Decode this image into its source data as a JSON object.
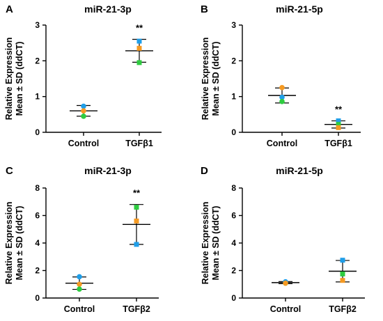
{
  "colors": {
    "blue": "#1f9ee8",
    "orange": "#f59a23",
    "green": "#2ecc40",
    "axis": "#000000"
  },
  "chart_data": [
    {
      "panel": "A",
      "type": "scatter",
      "title": "miR-21-3p",
      "ylabel_line1": "Relative Expression",
      "ylabel_line2": "Mean ± SD (ddCT)",
      "categories": [
        "Control",
        "TGFβ1"
      ],
      "ylim": [
        0,
        3
      ],
      "yticks": [
        "0",
        "1",
        "2",
        "3"
      ],
      "groups": [
        {
          "category": "Control",
          "mean": 0.6,
          "sd": 0.15,
          "points": [
            {
              "y": 0.73,
              "color": "blue",
              "shape": "circle"
            },
            {
              "y": 0.6,
              "color": "orange",
              "shape": "circle"
            },
            {
              "y": 0.45,
              "color": "green",
              "shape": "circle"
            }
          ],
          "sig": ""
        },
        {
          "category": "TGFβ1",
          "mean": 2.28,
          "sd": 0.32,
          "points": [
            {
              "y": 2.55,
              "color": "blue",
              "shape": "square"
            },
            {
              "y": 2.35,
              "color": "orange",
              "shape": "square"
            },
            {
              "y": 1.95,
              "color": "green",
              "shape": "square"
            }
          ],
          "sig": "**"
        }
      ]
    },
    {
      "panel": "B",
      "type": "scatter",
      "title": "miR-21-5p",
      "ylabel_line1": "Relative Expression",
      "ylabel_line2": "Mean ± SD (ddCT)",
      "categories": [
        "Control",
        "TGFβ1"
      ],
      "ylim": [
        0,
        3
      ],
      "yticks": [
        "0",
        "1",
        "2",
        "3"
      ],
      "groups": [
        {
          "category": "Control",
          "mean": 1.03,
          "sd": 0.21,
          "points": [
            {
              "y": 1.25,
              "color": "orange",
              "shape": "circle"
            },
            {
              "y": 0.98,
              "color": "blue",
              "shape": "circle"
            },
            {
              "y": 0.86,
              "color": "green",
              "shape": "circle"
            }
          ],
          "sig": ""
        },
        {
          "category": "TGFβ1",
          "mean": 0.22,
          "sd": 0.1,
          "points": [
            {
              "y": 0.32,
              "color": "blue",
              "shape": "square"
            },
            {
              "y": 0.22,
              "color": "green",
              "shape": "square"
            },
            {
              "y": 0.13,
              "color": "orange",
              "shape": "square"
            }
          ],
          "sig": "**"
        }
      ]
    },
    {
      "panel": "C",
      "type": "scatter",
      "title": "miR-21-3p",
      "ylabel_line1": "Relative Expression",
      "ylabel_line2": "Mean ± SD (ddCT)",
      "categories": [
        "Control",
        "TGFβ2"
      ],
      "ylim": [
        0,
        8
      ],
      "yticks": [
        "0",
        "2",
        "4",
        "6",
        "8"
      ],
      "groups": [
        {
          "category": "Control",
          "mean": 1.08,
          "sd": 0.45,
          "points": [
            {
              "y": 1.55,
              "color": "blue",
              "shape": "circle"
            },
            {
              "y": 1.0,
              "color": "orange",
              "shape": "circle"
            },
            {
              "y": 0.65,
              "color": "green",
              "shape": "circle"
            }
          ],
          "sig": ""
        },
        {
          "category": "TGFβ2",
          "mean": 5.35,
          "sd": 1.45,
          "points": [
            {
              "y": 6.6,
              "color": "green",
              "shape": "square"
            },
            {
              "y": 5.6,
              "color": "orange",
              "shape": "square"
            },
            {
              "y": 3.9,
              "color": "blue",
              "shape": "square"
            }
          ],
          "sig": "**"
        }
      ]
    },
    {
      "panel": "D",
      "type": "scatter",
      "title": "miR-21-5p",
      "ylabel_line1": "Relative Expression",
      "ylabel_line2": "Mean ± SD (ddCT)",
      "categories": [
        "Control",
        "TGFβ2"
      ],
      "ylim": [
        0,
        8
      ],
      "yticks": [
        "0",
        "2",
        "4",
        "6",
        "8"
      ],
      "groups": [
        {
          "category": "Control",
          "mean": 1.12,
          "sd": 0.08,
          "points": [
            {
              "y": 1.08,
              "color": "green",
              "shape": "circle"
            },
            {
              "y": 1.18,
              "color": "blue",
              "shape": "circle"
            },
            {
              "y": 1.08,
              "color": "orange",
              "shape": "circle"
            }
          ],
          "sig": ""
        },
        {
          "category": "TGFβ2",
          "mean": 1.95,
          "sd": 0.78,
          "points": [
            {
              "y": 2.75,
              "color": "blue",
              "shape": "square"
            },
            {
              "y": 1.75,
              "color": "green",
              "shape": "square"
            },
            {
              "y": 1.28,
              "color": "orange",
              "shape": "square"
            }
          ],
          "sig": ""
        }
      ]
    }
  ]
}
